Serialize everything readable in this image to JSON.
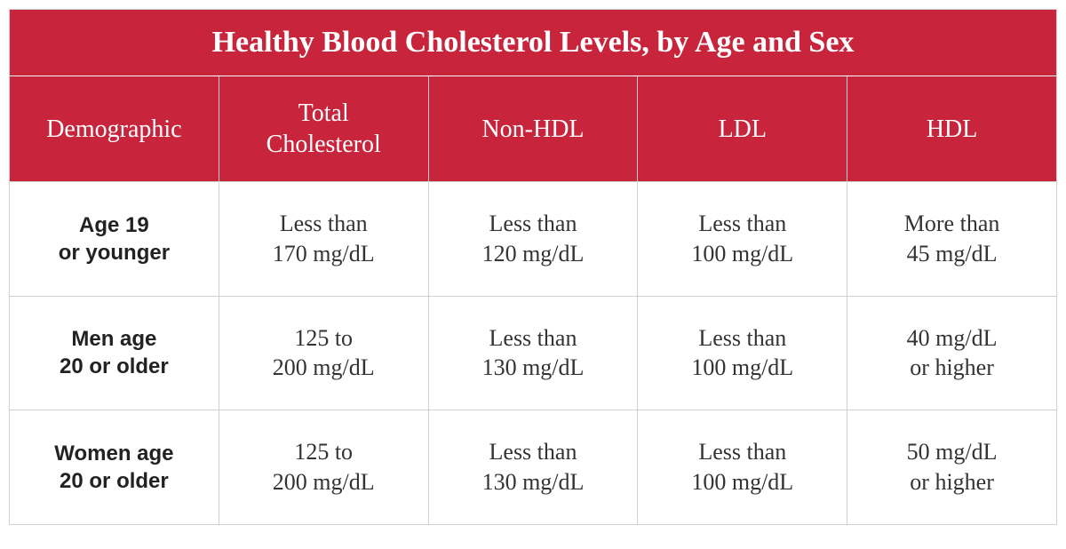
{
  "table": {
    "type": "table",
    "title": "Healthy Blood Cholesterol Levels, by Age and Sex",
    "header_bg": "#c8243c",
    "header_fg": "#ffffff",
    "body_bg": "#ffffff",
    "body_fg": "#333333",
    "border_color": "#d0d0d0",
    "title_fontsize": 34,
    "header_fontsize": 28,
    "cell_fontsize": 26,
    "firstcol_fontsize": 24,
    "columns": [
      "Demographic",
      "Total\nCholesterol",
      "Non-HDL",
      "LDL",
      "HDL"
    ],
    "rows": [
      {
        "demographic": "Age 19\nor younger",
        "total": "Less than\n170 mg/dL",
        "nonhdl": "Less than\n120 mg/dL",
        "ldl": "Less than\n100 mg/dL",
        "hdl": "More than\n45 mg/dL"
      },
      {
        "demographic": "Men age\n20 or older",
        "total": "125 to\n200 mg/dL",
        "nonhdl": "Less than\n130 mg/dL",
        "ldl": "Less than\n100 mg/dL",
        "hdl": "40 mg/dL\nor higher"
      },
      {
        "demographic": "Women age\n20 or older",
        "total": "125 to\n200 mg/dL",
        "nonhdl": "Less than\n130 mg/dL",
        "ldl": "Less than\n100 mg/dL",
        "hdl": "50 mg/dL\nor higher"
      }
    ]
  }
}
